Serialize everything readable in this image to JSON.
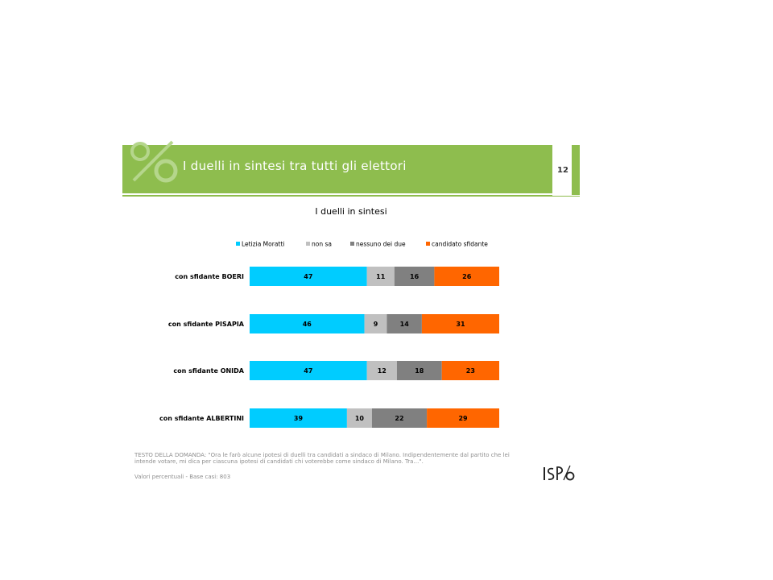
{
  "slide": {
    "title": "I duelli in sintesi tra tutti gli elettori",
    "page_number": "12",
    "brand_color": "#8ebd4e"
  },
  "footer": {
    "question_text": "TESTO DELLA DOMANDA: \"Ora le farò alcune ipotesi di duelli tra candidati a sindaco di Milano. Indipendentemente dal partito che lei intende votare, mi dica per ciascuna ipotesi di candidati chi voterebbe come sindaco di Milano. Tra…\".",
    "base_note": "Valori percentuali - Base casi: 803",
    "logo_text": "ISPO"
  },
  "chart_data": {
    "type": "bar",
    "orientation": "horizontal",
    "stacked": true,
    "title": "I duelli in sintesi",
    "categories": [
      "con sfidante BOERI",
      "con sfidante PISAPIA",
      "con sfidante ONIDA",
      "con sfidante ALBERTINI"
    ],
    "series": [
      {
        "name": "Letizia Moratti",
        "color": "#00ccff",
        "values": [
          47,
          46,
          47,
          39
        ]
      },
      {
        "name": "non sa",
        "color": "#c0c0c0",
        "values": [
          11,
          9,
          12,
          10
        ]
      },
      {
        "name": "nessuno dei due",
        "color": "#808080",
        "values": [
          16,
          14,
          18,
          22
        ]
      },
      {
        "name": "candidato sfidante",
        "color": "#ff6600",
        "values": [
          26,
          31,
          23,
          29
        ]
      }
    ],
    "xlim": [
      0,
      100
    ],
    "legend_position": "top",
    "grid": false
  }
}
